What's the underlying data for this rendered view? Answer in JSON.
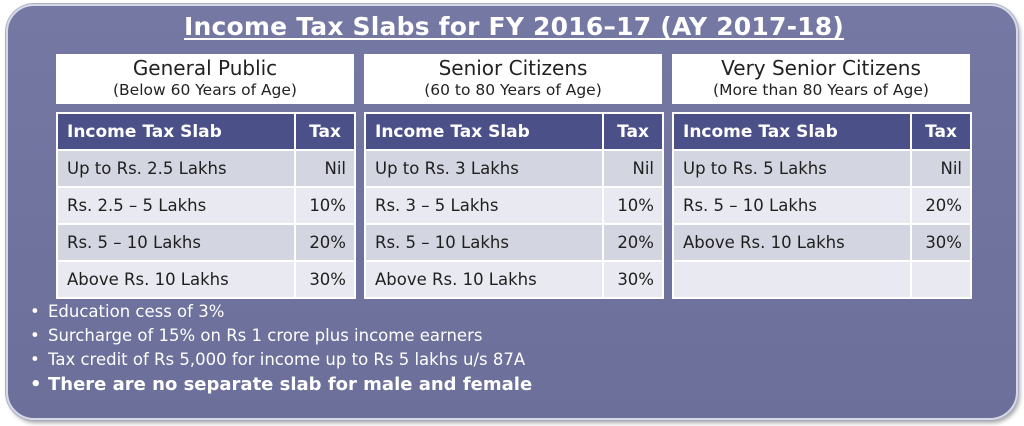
{
  "title": "Income Tax Slabs for FY 2016–17 (AY 2017-18)",
  "col_headers": {
    "slab": "Income Tax Slab",
    "tax": "Tax"
  },
  "groups": [
    {
      "name": "General Public",
      "subtitle": "(Below 60 Years of Age)",
      "rows": [
        {
          "slab": "Up to Rs. 2.5 Lakhs",
          "tax": "Nil"
        },
        {
          "slab": "Rs. 2.5 – 5 Lakhs",
          "tax": "10%"
        },
        {
          "slab": "Rs. 5 – 10 Lakhs",
          "tax": "20%"
        },
        {
          "slab": "Above Rs. 10 Lakhs",
          "tax": "30%"
        }
      ]
    },
    {
      "name": "Senior Citizens",
      "subtitle": "(60 to 80 Years of Age)",
      "rows": [
        {
          "slab": "Up to Rs. 3 Lakhs",
          "tax": "Nil"
        },
        {
          "slab": "Rs. 3 – 5 Lakhs",
          "tax": "10%"
        },
        {
          "slab": "Rs. 5 – 10 Lakhs",
          "tax": "20%"
        },
        {
          "slab": "Above Rs. 10 Lakhs",
          "tax": "30%"
        }
      ]
    },
    {
      "name": "Very Senior Citizens",
      "subtitle": "(More than 80 Years of Age)",
      "rows": [
        {
          "slab": "Up to Rs. 5 Lakhs",
          "tax": "Nil"
        },
        {
          "slab": "Rs. 5 – 10 Lakhs",
          "tax": "20%"
        },
        {
          "slab": "Above Rs. 10 Lakhs",
          "tax": "30%"
        },
        {
          "slab": "",
          "tax": ""
        }
      ]
    }
  ],
  "notes": [
    "Education cess of 3%",
    "Surcharge of 15% on Rs 1 crore plus income earners",
    "Tax credit of Rs 5,000 for income up to Rs 5 lakhs u/s 87A",
    "There are no separate slab for male and female"
  ],
  "bullet": "•"
}
